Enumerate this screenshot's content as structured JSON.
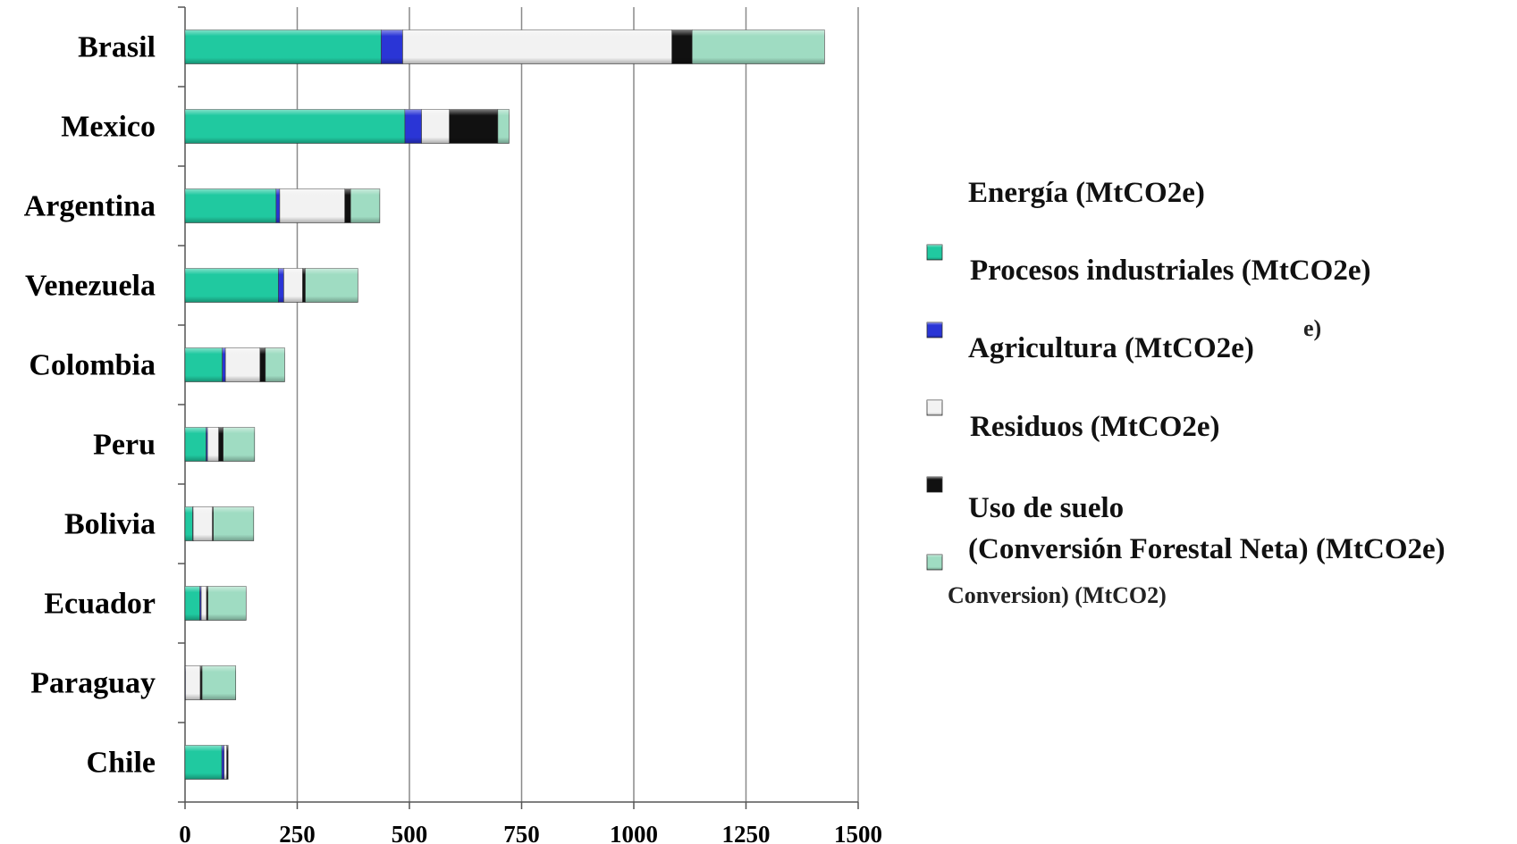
{
  "chart_data": {
    "type": "bar",
    "orientation": "horizontal",
    "stacked": true,
    "categories": [
      "Brasil",
      "Mexico",
      "Argentina",
      "Venezuela",
      "Colombia",
      "Peru",
      "Bolivia",
      "Ecuador",
      "Paraguay",
      "Chile"
    ],
    "series": [
      {
        "name": "Energía (MtCO2e)",
        "color": "#20c9a0",
        "values": [
          437,
          490,
          203,
          208,
          83,
          47,
          17,
          33,
          0,
          82
        ]
      },
      {
        "name": "Procesos industriales (MtCO2e)",
        "color": "#2a35d6",
        "values": [
          48,
          37,
          8,
          12,
          7,
          3,
          1,
          3,
          1,
          5
        ]
      },
      {
        "name": "Agricultura (MtCO2e)",
        "color": "#f2f2f2",
        "values": [
          600,
          62,
          145,
          42,
          77,
          25,
          43,
          12,
          33,
          6
        ]
      },
      {
        "name": "Residuos (MtCO2e)",
        "color": "#111111",
        "values": [
          45,
          108,
          13,
          6,
          12,
          10,
          2,
          3,
          4,
          3
        ]
      },
      {
        "name": "Uso de suelo (Conversión Forestal Neta) (MtCO2e)",
        "color": "#9fdcc2",
        "values": [
          295,
          25,
          65,
          117,
          43,
          70,
          90,
          85,
          75,
          0
        ]
      }
    ],
    "xlim": [
      0,
      1500
    ],
    "xticks": [
      "0",
      "250",
      "500",
      "750",
      "1000",
      "1250",
      "1500"
    ],
    "grid": "vertical",
    "legend_position": "right"
  },
  "legend": {
    "title_line": "Energía (MtCO2e)",
    "items": [
      {
        "label": "Procesos industriales (MtCO2e)"
      },
      {
        "label": "Agricultura (MtCO2e)"
      },
      {
        "label": "Residuos (MtCO2e)"
      },
      {
        "label": "Uso de suelo",
        "label2": "(Conversión Forestal Neta) (MtCO2e)"
      }
    ],
    "ghost_text": [
      "e)",
      "Conversion) (MtCO2)"
    ]
  }
}
